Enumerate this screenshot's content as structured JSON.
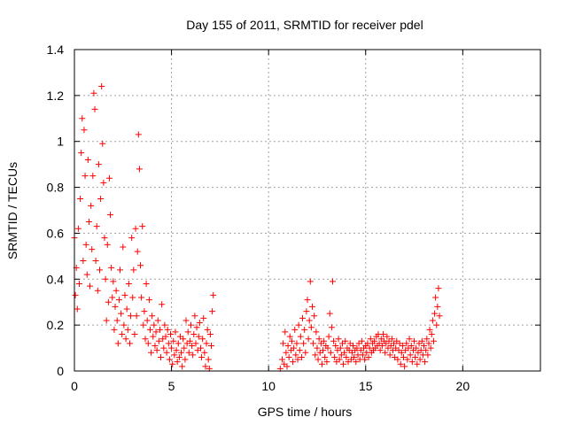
{
  "chart_data": {
    "type": "scatter",
    "title": "Day 155 of 2011, SRMTID for receiver pdel",
    "xlabel": "GPS time / hours",
    "ylabel": "SRMTID / TECUs",
    "xlim": [
      0,
      24
    ],
    "ylim": [
      0,
      1.4
    ],
    "xticks": [
      0,
      5,
      10,
      15,
      20
    ],
    "yticks": [
      0,
      0.2,
      0.4,
      0.6,
      0.8,
      1,
      1.2,
      1.4
    ],
    "xtick_labels": [
      "0",
      "5",
      "10",
      "15",
      "20"
    ],
    "ytick_labels": [
      "0",
      "0.2",
      "0.4",
      "0.6",
      "0.8",
      "1",
      "1.2",
      "1.4"
    ],
    "grid": true,
    "marker": "+",
    "series": [
      {
        "name": "pdel",
        "color": "#ff0000",
        "points": [
          [
            0.0,
            0.58
          ],
          [
            0.05,
            0.33
          ],
          [
            0.1,
            0.45
          ],
          [
            0.15,
            0.27
          ],
          [
            0.2,
            0.62
          ],
          [
            0.25,
            0.38
          ],
          [
            0.3,
            0.75
          ],
          [
            0.35,
            0.95
          ],
          [
            0.4,
            1.1
          ],
          [
            0.45,
            0.48
          ],
          [
            0.5,
            1.05
          ],
          [
            0.55,
            0.85
          ],
          [
            0.6,
            0.55
          ],
          [
            0.65,
            0.42
          ],
          [
            0.7,
            0.92
          ],
          [
            0.75,
            0.65
          ],
          [
            0.8,
            0.37
          ],
          [
            0.85,
            0.72
          ],
          [
            0.9,
            0.53
          ],
          [
            0.95,
            0.85
          ],
          [
            1.0,
            1.21
          ],
          [
            1.05,
            1.14
          ],
          [
            1.1,
            0.48
          ],
          [
            1.15,
            0.63
          ],
          [
            1.2,
            0.35
          ],
          [
            1.25,
            0.9
          ],
          [
            1.3,
            0.44
          ],
          [
            1.35,
            0.75
          ],
          [
            1.4,
            1.24
          ],
          [
            1.45,
            0.99
          ],
          [
            1.5,
            0.82
          ],
          [
            1.55,
            0.58
          ],
          [
            1.6,
            0.4
          ],
          [
            1.65,
            0.22
          ],
          [
            1.7,
            0.55
          ],
          [
            1.75,
            0.3
          ],
          [
            1.8,
            0.84
          ],
          [
            1.85,
            0.68
          ],
          [
            1.9,
            0.45
          ],
          [
            1.95,
            0.32
          ],
          [
            2.0,
            0.39
          ],
          [
            2.05,
            0.18
          ],
          [
            2.1,
            0.28
          ],
          [
            2.15,
            0.35
          ],
          [
            2.2,
            0.22
          ],
          [
            2.25,
            0.12
          ],
          [
            2.3,
            0.31
          ],
          [
            2.35,
            0.44
          ],
          [
            2.4,
            0.25
          ],
          [
            2.45,
            0.16
          ],
          [
            2.5,
            0.54
          ],
          [
            2.55,
            0.2
          ],
          [
            2.6,
            0.33
          ],
          [
            2.65,
            0.14
          ],
          [
            2.7,
            0.27
          ],
          [
            2.75,
            0.18
          ],
          [
            2.8,
            0.38
          ],
          [
            2.85,
            0.12
          ],
          [
            2.9,
            0.24
          ],
          [
            2.95,
            0.58
          ],
          [
            3.0,
            0.32
          ],
          [
            3.05,
            0.44
          ],
          [
            3.1,
            0.16
          ],
          [
            3.15,
            0.62
          ],
          [
            3.2,
            0.24
          ],
          [
            3.25,
            0.52
          ],
          [
            3.3,
            1.03
          ],
          [
            3.35,
            0.88
          ],
          [
            3.4,
            0.46
          ],
          [
            3.45,
            0.32
          ],
          [
            3.5,
            0.63
          ],
          [
            3.55,
            0.2
          ],
          [
            3.6,
            0.26
          ],
          [
            3.65,
            0.14
          ],
          [
            3.7,
            0.38
          ],
          [
            3.75,
            0.22
          ],
          [
            3.8,
            0.12
          ],
          [
            3.85,
            0.31
          ],
          [
            3.9,
            0.18
          ],
          [
            3.95,
            0.08
          ],
          [
            4.0,
            0.24
          ],
          [
            4.05,
            0.15
          ],
          [
            4.1,
            0.2
          ],
          [
            4.15,
            0.11
          ],
          [
            4.2,
            0.17
          ],
          [
            4.25,
            0.09
          ],
          [
            4.3,
            0.22
          ],
          [
            4.35,
            0.13
          ],
          [
            4.4,
            0.18
          ],
          [
            4.45,
            0.06
          ],
          [
            4.5,
            0.29
          ],
          [
            4.55,
            0.14
          ],
          [
            4.6,
            0.1
          ],
          [
            4.65,
            0.2
          ],
          [
            4.7,
            0.15
          ],
          [
            4.75,
            0.08
          ],
          [
            4.8,
            0.18
          ],
          [
            4.85,
            0.12
          ],
          [
            4.9,
            0.05
          ],
          [
            4.95,
            0.16
          ],
          [
            5.0,
            0.1
          ],
          [
            5.05,
            0.03
          ],
          [
            5.1,
            0.13
          ],
          [
            5.15,
            0.07
          ],
          [
            5.2,
            0.17
          ],
          [
            5.25,
            0.09
          ],
          [
            5.3,
            0.04
          ],
          [
            5.35,
            0.12
          ],
          [
            5.4,
            0.06
          ],
          [
            5.45,
            0.15
          ],
          [
            5.5,
            0.08
          ],
          [
            5.55,
            0.02
          ],
          [
            5.6,
            0.14
          ],
          [
            5.65,
            0.1
          ],
          [
            5.7,
            0.05
          ],
          [
            5.75,
            0.22
          ],
          [
            5.8,
            0.12
          ],
          [
            5.85,
            0.17
          ],
          [
            5.9,
            0.08
          ],
          [
            5.95,
            0.13
          ],
          [
            6.0,
            0.2
          ],
          [
            6.05,
            0.11
          ],
          [
            6.1,
            0.07
          ],
          [
            6.15,
            0.16
          ],
          [
            6.2,
            0.24
          ],
          [
            6.25,
            0.12
          ],
          [
            6.3,
            0.19
          ],
          [
            6.35,
            0.09
          ],
          [
            6.4,
            0.15
          ],
          [
            6.45,
            0.21
          ],
          [
            6.5,
            0.1
          ],
          [
            6.55,
            0.06
          ],
          [
            6.6,
            0.14
          ],
          [
            6.65,
            0.23
          ],
          [
            6.7,
            0.08
          ],
          [
            6.75,
            0.02
          ],
          [
            6.8,
            0.12
          ],
          [
            6.85,
            0.18
          ],
          [
            6.9,
            0.05
          ],
          [
            6.95,
            0.01
          ],
          [
            7.0,
            0.16
          ],
          [
            7.05,
            0.11
          ],
          [
            7.1,
            0.26
          ],
          [
            7.15,
            0.33
          ],
          [
            10.6,
            0.01
          ],
          [
            10.7,
            0.05
          ],
          [
            10.75,
            0.12
          ],
          [
            10.8,
            0.03
          ],
          [
            10.85,
            0.17
          ],
          [
            10.9,
            0.08
          ],
          [
            10.95,
            0.02
          ],
          [
            11.0,
            0.11
          ],
          [
            11.05,
            0.06
          ],
          [
            11.1,
            0.15
          ],
          [
            11.15,
            0.09
          ],
          [
            11.2,
            0.13
          ],
          [
            11.25,
            0.04
          ],
          [
            11.3,
            0.1
          ],
          [
            11.35,
            0.18
          ],
          [
            11.4,
            0.07
          ],
          [
            11.45,
            0.12
          ],
          [
            11.5,
            0.05
          ],
          [
            11.55,
            0.2
          ],
          [
            11.6,
            0.09
          ],
          [
            11.65,
            0.15
          ],
          [
            11.7,
            0.06
          ],
          [
            11.75,
            0.23
          ],
          [
            11.8,
            0.12
          ],
          [
            11.85,
            0.18
          ],
          [
            11.9,
            0.08
          ],
          [
            11.95,
            0.26
          ],
          [
            12.0,
            0.31
          ],
          [
            12.05,
            0.14
          ],
          [
            12.1,
            0.22
          ],
          [
            12.15,
            0.39
          ],
          [
            12.2,
            0.19
          ],
          [
            12.25,
            0.28
          ],
          [
            12.3,
            0.12
          ],
          [
            12.35,
            0.24
          ],
          [
            12.4,
            0.07
          ],
          [
            12.45,
            0.17
          ],
          [
            12.5,
            0.1
          ],
          [
            12.55,
            0.05
          ],
          [
            12.6,
            0.14
          ],
          [
            12.65,
            0.08
          ],
          [
            12.7,
            0.12
          ],
          [
            12.75,
            0.03
          ],
          [
            12.8,
            0.09
          ],
          [
            12.85,
            0.13
          ],
          [
            12.9,
            0.06
          ],
          [
            12.95,
            0.11
          ],
          [
            13.0,
            0.04
          ],
          [
            13.05,
            0.1
          ],
          [
            13.1,
            0.15
          ],
          [
            13.15,
            0.25
          ],
          [
            13.2,
            0.08
          ],
          [
            13.25,
            0.19
          ],
          [
            13.3,
            0.39
          ],
          [
            13.35,
            0.13
          ],
          [
            13.4,
            0.06
          ],
          [
            13.45,
            0.11
          ],
          [
            13.5,
            0.04
          ],
          [
            13.55,
            0.09
          ],
          [
            13.6,
            0.14
          ],
          [
            13.65,
            0.05
          ],
          [
            13.7,
            0.1
          ],
          [
            13.75,
            0.07
          ],
          [
            13.8,
            0.12
          ],
          [
            13.85,
            0.03
          ],
          [
            13.9,
            0.08
          ],
          [
            13.95,
            0.13
          ],
          [
            14.0,
            0.06
          ],
          [
            14.05,
            0.1
          ],
          [
            14.1,
            0.04
          ],
          [
            14.15,
            0.09
          ],
          [
            14.2,
            0.12
          ],
          [
            14.25,
            0.05
          ],
          [
            14.3,
            0.08
          ],
          [
            14.35,
            0.11
          ],
          [
            14.4,
            0.06
          ],
          [
            14.45,
            0.09
          ],
          [
            14.5,
            0.04
          ],
          [
            14.55,
            0.1
          ],
          [
            14.6,
            0.07
          ],
          [
            14.65,
            0.12
          ],
          [
            14.7,
            0.05
          ],
          [
            14.75,
            0.09
          ],
          [
            14.8,
            0.13
          ],
          [
            14.85,
            0.07
          ],
          [
            14.9,
            0.1
          ],
          [
            14.95,
            0.05
          ],
          [
            15.0,
            0.11
          ],
          [
            15.05,
            0.08
          ],
          [
            15.1,
            0.12
          ],
          [
            15.15,
            0.06
          ],
          [
            15.2,
            0.1
          ],
          [
            15.25,
            0.14
          ],
          [
            15.3,
            0.08
          ],
          [
            15.35,
            0.12
          ],
          [
            15.4,
            0.09
          ],
          [
            15.45,
            0.13
          ],
          [
            15.5,
            0.1
          ],
          [
            15.55,
            0.15
          ],
          [
            15.6,
            0.11
          ],
          [
            15.65,
            0.16
          ],
          [
            15.7,
            0.12
          ],
          [
            15.75,
            0.09
          ],
          [
            15.8,
            0.14
          ],
          [
            15.85,
            0.11
          ],
          [
            15.9,
            0.16
          ],
          [
            15.95,
            0.13
          ],
          [
            16.0,
            0.08
          ],
          [
            16.05,
            0.12
          ],
          [
            16.1,
            0.15
          ],
          [
            16.15,
            0.1
          ],
          [
            16.2,
            0.13
          ],
          [
            16.25,
            0.07
          ],
          [
            16.3,
            0.11
          ],
          [
            16.35,
            0.14
          ],
          [
            16.4,
            0.09
          ],
          [
            16.45,
            0.12
          ],
          [
            16.5,
            0.06
          ],
          [
            16.55,
            0.1
          ],
          [
            16.6,
            0.13
          ],
          [
            16.65,
            0.05
          ],
          [
            16.7,
            0.09
          ],
          [
            16.75,
            0.12
          ],
          [
            16.8,
            0.03
          ],
          [
            16.85,
            0.08
          ],
          [
            16.9,
            0.11
          ],
          [
            16.95,
            0.06
          ],
          [
            17.0,
            0.02
          ],
          [
            17.05,
            0.09
          ],
          [
            17.1,
            0.12
          ],
          [
            17.15,
            0.05
          ],
          [
            17.2,
            0.1
          ],
          [
            17.25,
            0.14
          ],
          [
            17.3,
            0.07
          ],
          [
            17.35,
            0.11
          ],
          [
            17.4,
            0.04
          ],
          [
            17.45,
            0.09
          ],
          [
            17.5,
            0.13
          ],
          [
            17.55,
            0.06
          ],
          [
            17.6,
            0.1
          ],
          [
            17.65,
            0.03
          ],
          [
            17.7,
            0.08
          ],
          [
            17.75,
            0.12
          ],
          [
            17.8,
            0.05
          ],
          [
            17.85,
            0.09
          ],
          [
            17.9,
            0.13
          ],
          [
            17.95,
            0.07
          ],
          [
            18.0,
            0.11
          ],
          [
            18.05,
            0.04
          ],
          [
            18.1,
            0.09
          ],
          [
            18.15,
            0.14
          ],
          [
            18.2,
            0.07
          ],
          [
            18.25,
            0.12
          ],
          [
            18.3,
            0.18
          ],
          [
            18.35,
            0.1
          ],
          [
            18.4,
            0.16
          ],
          [
            18.45,
            0.22
          ],
          [
            18.5,
            0.13
          ],
          [
            18.55,
            0.25
          ],
          [
            18.6,
            0.32
          ],
          [
            18.65,
            0.2
          ],
          [
            18.7,
            0.28
          ],
          [
            18.75,
            0.36
          ],
          [
            18.8,
            0.24
          ]
        ]
      }
    ]
  }
}
